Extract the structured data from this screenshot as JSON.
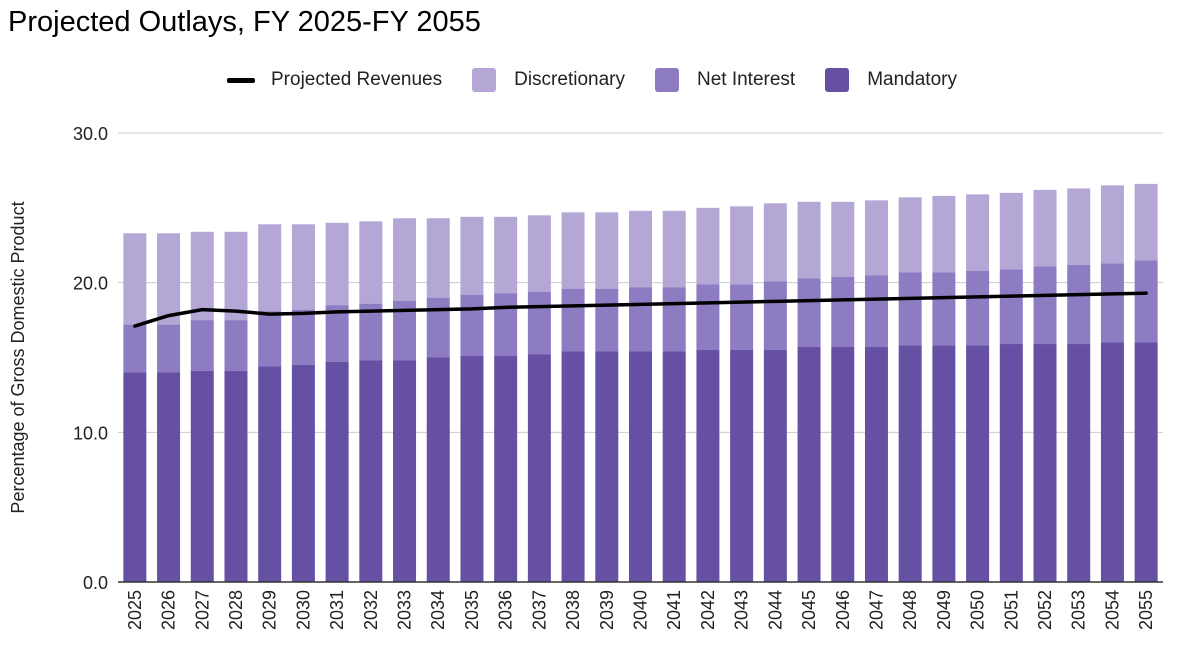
{
  "chart_data": {
    "type": "bar",
    "stacked": true,
    "title": "Projected Outlays, FY 2025-FY 2055",
    "xlabel": "",
    "ylabel": "Percentage of Gross Domestic Product",
    "ylim": [
      0,
      30
    ],
    "yticks": [
      "0.0",
      "10.0",
      "20.0",
      "30.0"
    ],
    "grid": true,
    "legend_position": "top-center",
    "categories": [
      "2025",
      "2026",
      "2027",
      "2028",
      "2029",
      "2030",
      "2031",
      "2032",
      "2033",
      "2034",
      "2035",
      "2036",
      "2037",
      "2038",
      "2039",
      "2040",
      "2041",
      "2042",
      "2043",
      "2044",
      "2045",
      "2046",
      "2047",
      "2048",
      "2049",
      "2050",
      "2051",
      "2052",
      "2053",
      "2054",
      "2055"
    ],
    "series": [
      {
        "name": "Mandatory",
        "kind": "bar",
        "color": "#6550a4",
        "values": [
          14.0,
          14.0,
          14.1,
          14.1,
          14.4,
          14.5,
          14.7,
          14.8,
          14.8,
          15.0,
          15.1,
          15.1,
          15.2,
          15.4,
          15.4,
          15.4,
          15.4,
          15.5,
          15.5,
          15.5,
          15.7,
          15.7,
          15.7,
          15.8,
          15.8,
          15.8,
          15.9,
          15.9,
          15.9,
          16.0,
          16.0
        ]
      },
      {
        "name": "Net Interest",
        "kind": "bar",
        "color": "#8e7cc3",
        "values": [
          3.2,
          3.2,
          3.4,
          3.4,
          3.7,
          3.7,
          3.8,
          3.8,
          4.0,
          4.0,
          4.1,
          4.2,
          4.2,
          4.2,
          4.2,
          4.3,
          4.3,
          4.4,
          4.4,
          4.6,
          4.6,
          4.7,
          4.8,
          4.9,
          4.9,
          5.0,
          5.0,
          5.2,
          5.3,
          5.3,
          5.5
        ]
      },
      {
        "name": "Discretionary",
        "kind": "bar",
        "color": "#b4a7d6",
        "values": [
          6.1,
          6.1,
          5.9,
          5.9,
          5.8,
          5.7,
          5.5,
          5.5,
          5.5,
          5.3,
          5.2,
          5.1,
          5.1,
          5.1,
          5.1,
          5.1,
          5.1,
          5.1,
          5.2,
          5.2,
          5.1,
          5.0,
          5.0,
          5.0,
          5.1,
          5.1,
          5.1,
          5.1,
          5.1,
          5.2,
          5.1
        ]
      },
      {
        "name": "Projected Revenues",
        "kind": "line",
        "color": "#000000",
        "values": [
          17.1,
          17.8,
          18.2,
          18.1,
          17.9,
          17.95,
          18.05,
          18.1,
          18.15,
          18.2,
          18.25,
          18.35,
          18.4,
          18.45,
          18.5,
          18.55,
          18.6,
          18.65,
          18.7,
          18.75,
          18.8,
          18.85,
          18.9,
          18.95,
          19.0,
          19.05,
          19.1,
          19.15,
          19.2,
          19.25,
          19.3
        ]
      }
    ],
    "legend_order": [
      "Projected Revenues",
      "Discretionary",
      "Net Interest",
      "Mandatory"
    ]
  }
}
